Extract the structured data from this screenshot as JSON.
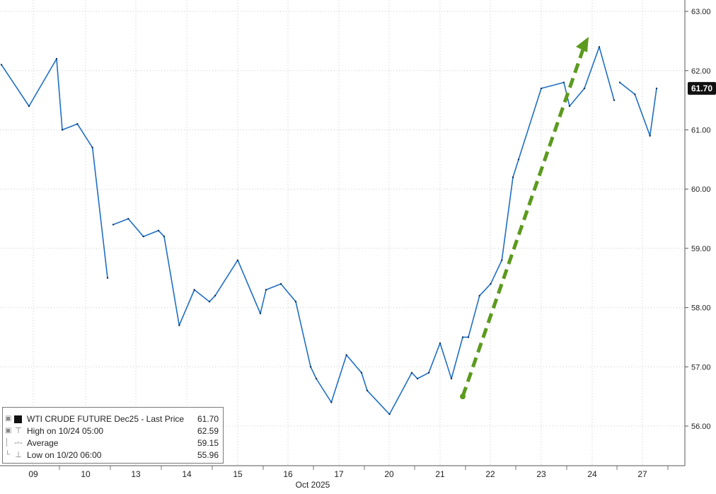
{
  "chart_data": {
    "type": "line",
    "title": "",
    "xlabel": "Oct 2025",
    "ylabel": "",
    "x_ticks": [
      "09",
      "10",
      "13",
      "14",
      "15",
      "16",
      "17",
      "20",
      "21",
      "22",
      "23",
      "24",
      "27"
    ],
    "y_ticks": [
      "56.00",
      "57.00",
      "58.00",
      "59.00",
      "60.00",
      "61.00",
      "62.00",
      "63.00"
    ],
    "ylim": [
      55.5,
      63.1
    ],
    "grid": true,
    "axis_side": "right",
    "series": [
      {
        "name": "WTI CRUDE FUTURE Dec25 - Last Price",
        "color": "#1f6fc4",
        "x": [
          "09",
          "09",
          "09",
          "10",
          "10",
          "10",
          "10",
          "13",
          "13",
          "13",
          "13",
          "14",
          "14",
          "14",
          "14",
          "15",
          "15",
          "15",
          "16",
          "16",
          "16",
          "16",
          "17",
          "17",
          "17",
          "17",
          "20",
          "20",
          "20",
          "21",
          "21",
          "21",
          "21",
          "21",
          "22",
          "22",
          "22",
          "22",
          "22",
          "23",
          "23",
          "23",
          "24",
          "24",
          "24",
          "24",
          "27",
          "27",
          "27",
          "27"
        ],
        "values": [
          62.1,
          61.4,
          62.2,
          61.0,
          61.1,
          60.7,
          58.5,
          59.4,
          59.5,
          59.2,
          59.3,
          59.2,
          57.7,
          58.3,
          58.1,
          58.2,
          58.8,
          57.9,
          58.3,
          58.4,
          58.1,
          57.0,
          56.8,
          56.4,
          57.2,
          56.9,
          56.6,
          56.2,
          56.9,
          56.8,
          56.9,
          57.4,
          56.8,
          57.5,
          57.5,
          58.2,
          58.4,
          58.8,
          60.2,
          60.5,
          61.7,
          61.8,
          61.4,
          61.7,
          62.4,
          61.5,
          61.8,
          61.6,
          60.9,
          61.7
        ]
      }
    ],
    "last_price_label": "61.70",
    "annotation": "green dashed arrow from 56.5 (Oct 21) up to 62.5 (Oct 24)",
    "legend": {
      "placement": "bottom-left",
      "rows": [
        {
          "label": "WTI CRUDE FUTURE Dec25 - Last Price",
          "value": "61.70"
        },
        {
          "label": "High on 10/24 05:00",
          "value": "62.59"
        },
        {
          "label": "Average",
          "value": "59.15"
        },
        {
          "label": "Low on 10/20 06:00",
          "value": "55.96"
        }
      ]
    }
  },
  "icons": {
    "legend_marks": [
      "series-swatch-icon",
      "high-marker-icon",
      "average-marker-icon",
      "low-marker-icon"
    ]
  }
}
